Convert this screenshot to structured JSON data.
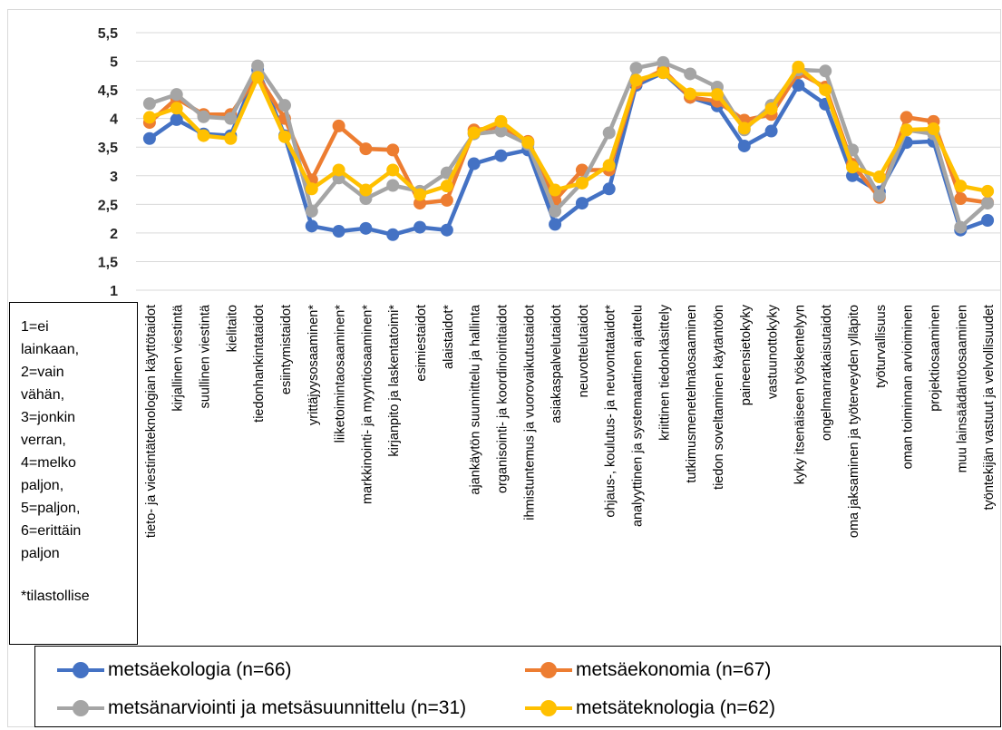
{
  "chart_data": {
    "type": "line",
    "categories": [
      "tieto- ja viestintäteknologian käyttötaidot",
      "kirjallinen viestintä",
      "suullinen viestintä",
      "kielitaito",
      "tiedonhankintataidot",
      "esiintymistaidot",
      "yrittäjyysosaaminen*",
      "liiketoimintaosaaminen*",
      "markkinointi- ja myyntiosaaminen*",
      "kirjanpito ja laskentatoimi*",
      "esimiestaidot",
      "alaistaidot*",
      "ajankäytön suunnittelu ja hallinta",
      "organisointi- ja koordinointitaidot",
      "ihmistuntemus ja vuorovaikutustaidot",
      "asiakaspalvelutaidot",
      "neuvottelutaidot",
      "ohjaus-, koulutus- ja neuvontataidot*",
      "analyyttinen ja systemaattinen ajattelu",
      "kriittinen tiedonkäsittely",
      "tutkimusmenetelmäosaaminen",
      "tiedon soveltaminen käytäntöön",
      "paineensietokyky",
      "vastuunottokyky",
      "kyky itsenäiseen työskentelyyn",
      "ongelmanratkaisutaidot",
      "oma jaksaminen ja työterveyden ylläpito",
      "työturvallisuus",
      "oman toiminnan arvioiminen",
      "projektiosaaminen",
      "muu lainsäädäntöosaaminen",
      "työntekijän vastuut ja velvollisuudet"
    ],
    "series": [
      {
        "name": "metsäekologia (n=66)",
        "color": "#4472C4",
        "values": [
          3.65,
          3.98,
          3.73,
          3.7,
          4.85,
          3.7,
          2.12,
          2.03,
          2.08,
          1.97,
          2.1,
          2.05,
          3.21,
          3.35,
          3.45,
          2.15,
          2.52,
          2.77,
          4.58,
          4.8,
          4.37,
          4.22,
          3.52,
          3.78,
          4.58,
          4.25,
          3.0,
          2.72,
          3.58,
          3.6,
          2.05,
          2.22
        ]
      },
      {
        "name": "metsäekonomia (n=67)",
        "color": "#ED7D31",
        "values": [
          3.93,
          4.35,
          4.07,
          4.07,
          4.75,
          4.0,
          2.93,
          3.87,
          3.47,
          3.45,
          2.52,
          2.57,
          3.8,
          3.85,
          3.6,
          2.57,
          3.1,
          3.1,
          4.62,
          4.85,
          4.37,
          4.3,
          3.97,
          4.07,
          4.8,
          4.55,
          3.2,
          2.62,
          4.02,
          3.95,
          2.6,
          2.53
        ]
      },
      {
        "name": "metsänarviointi ja metsäsuunnittelu (n=31)",
        "color": "#A5A5A5",
        "values": [
          4.26,
          4.42,
          4.03,
          4.0,
          4.92,
          4.23,
          2.38,
          2.96,
          2.6,
          2.83,
          2.73,
          3.05,
          3.73,
          3.78,
          3.55,
          2.38,
          2.88,
          3.75,
          4.88,
          4.98,
          4.78,
          4.55,
          3.8,
          4.23,
          4.85,
          4.83,
          3.45,
          2.65,
          3.8,
          3.73,
          2.1,
          2.52
        ]
      },
      {
        "name": "metsäteknologia (n=62)",
        "color": "#FFC000",
        "values": [
          4.02,
          4.18,
          3.7,
          3.65,
          4.72,
          3.68,
          2.77,
          3.1,
          2.75,
          3.1,
          2.67,
          2.82,
          3.75,
          3.95,
          3.58,
          2.75,
          2.87,
          3.18,
          4.67,
          4.8,
          4.43,
          4.42,
          3.83,
          4.17,
          4.9,
          4.5,
          3.15,
          2.98,
          3.8,
          3.82,
          2.82,
          2.73
        ]
      }
    ],
    "yticks": [
      "1",
      "1,5",
      "2",
      "2,5",
      "3",
      "3,5",
      "4",
      "4,5",
      "5",
      "5,5"
    ],
    "ylim": [
      1,
      5.5
    ],
    "grid": true,
    "legend_position": "bottom"
  },
  "note": {
    "lines": [
      "1=ei",
      "lainkaan,",
      "2=vain",
      "vähän,",
      "3=jonkin",
      "verran,",
      "4=melko",
      "paljon,",
      "5=paljon,",
      "6=erittäin",
      "paljon"
    ],
    "star": "*tilastollise"
  }
}
